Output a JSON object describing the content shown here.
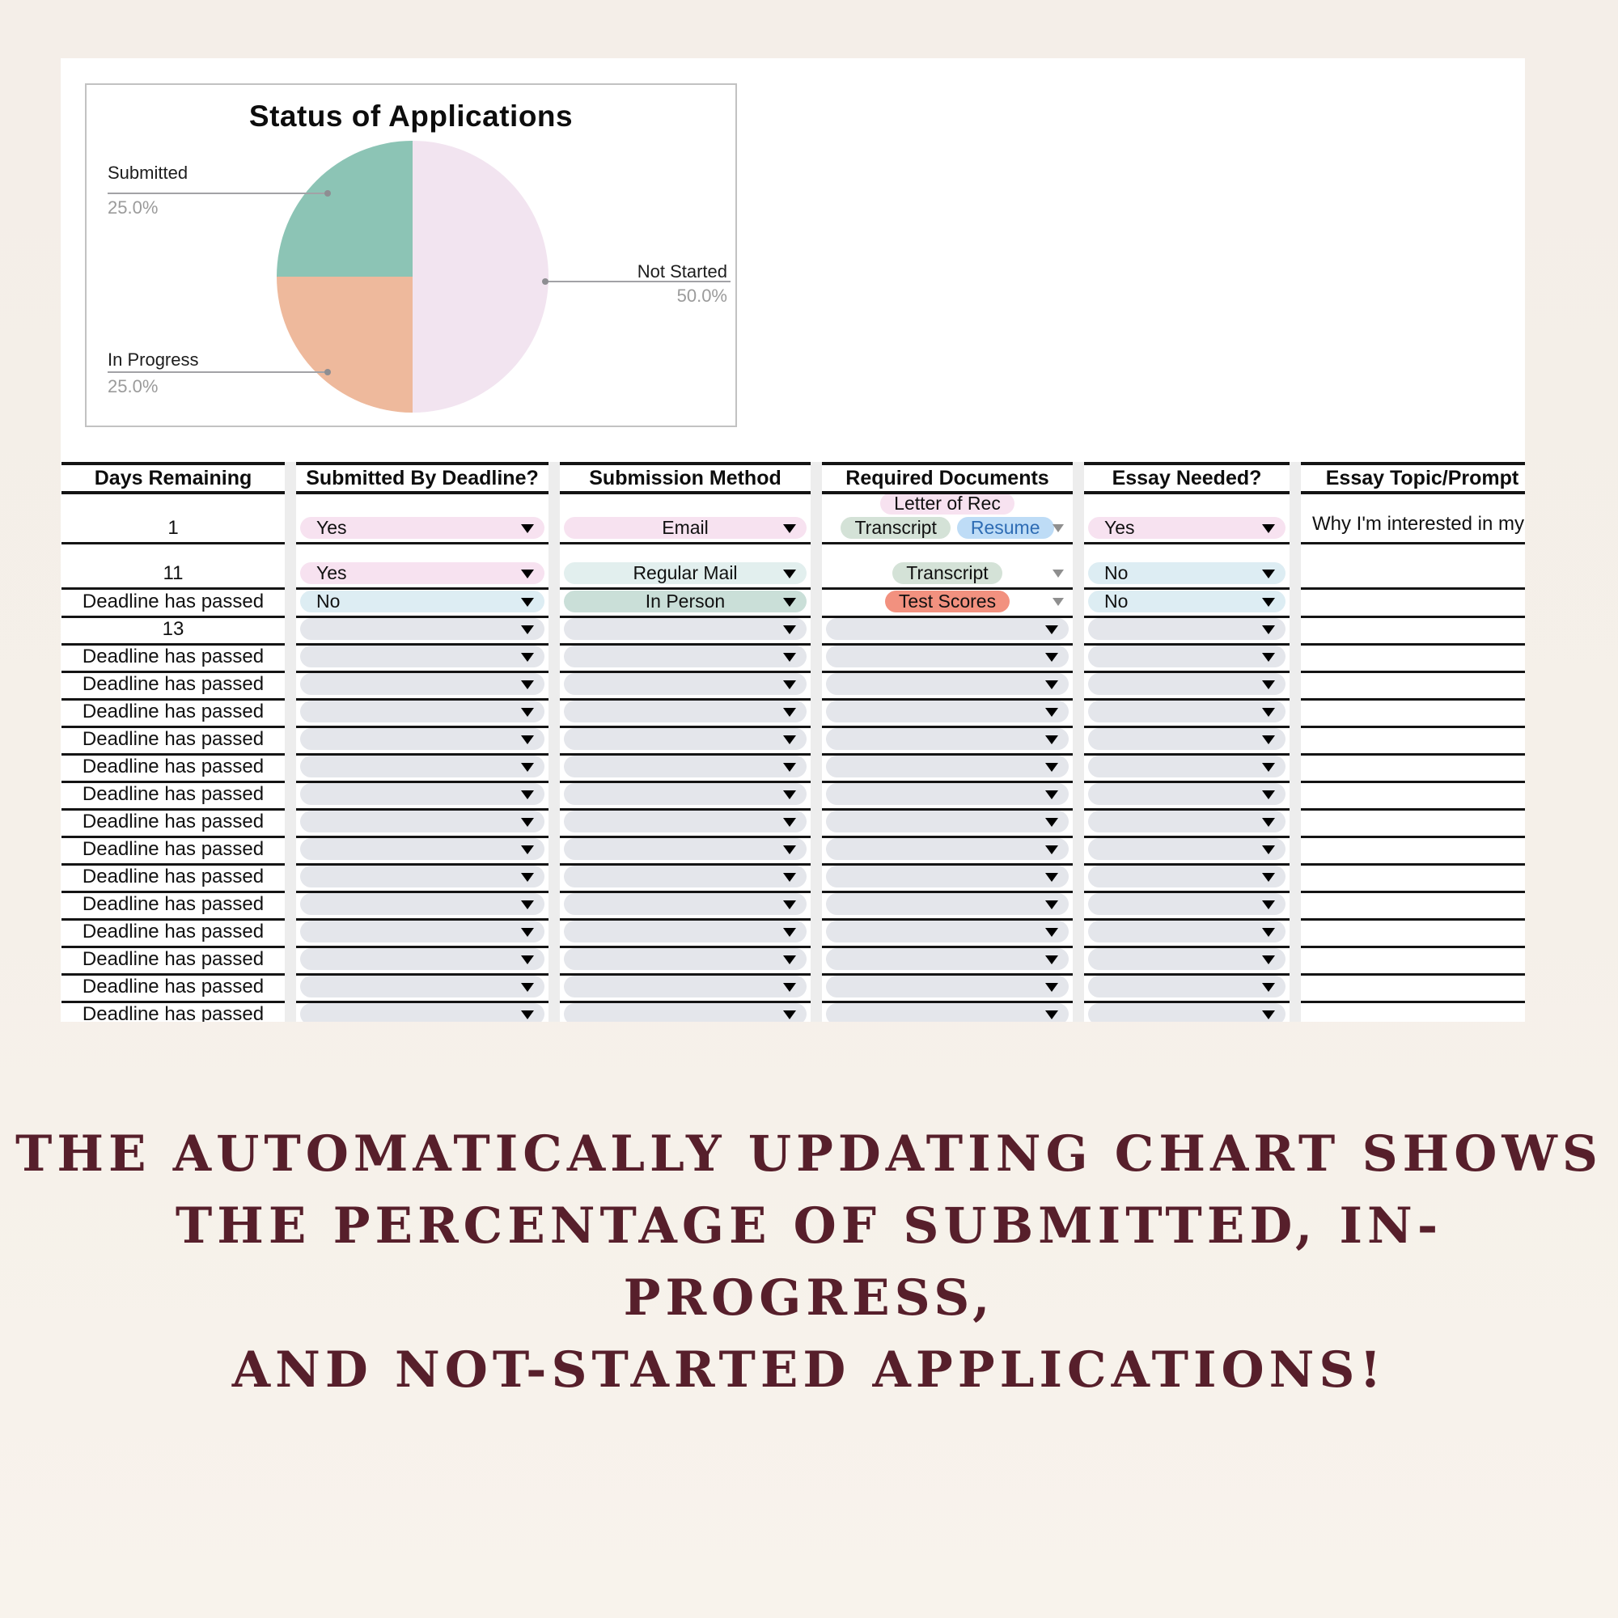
{
  "chart_data": {
    "type": "pie",
    "title": "Status of Applications",
    "legend_position": "outside-callout-labels",
    "grid": false,
    "slices": [
      {
        "label": "Submitted",
        "value": 25.0,
        "pct_label": "25.0%",
        "color": "#8cc4b5"
      },
      {
        "label": "In Progress",
        "value": 25.0,
        "pct_label": "25.0%",
        "color": "#eeb99c"
      },
      {
        "label": "Not Started",
        "value": 50.0,
        "pct_label": "50.0%",
        "color": "#f2e4f0"
      }
    ]
  },
  "table": {
    "headers": [
      "Days Remaining",
      "Submitted By Deadline?",
      "Submission Method",
      "Required Documents",
      "Essay Needed?",
      "Essay Topic/Prompt"
    ],
    "pill_colors": {
      "pink": "#f7e2f0",
      "lightblue": "#ddedf3",
      "cyan": "#e2efee",
      "teal": "#cadfd8",
      "green": "#d4e2d7",
      "blue": "#bedcf6",
      "red": "#f2917f",
      "empty": "#e4e6eb"
    },
    "blue_chip_text": "#2e6cb4",
    "rows": [
      {
        "days": "1",
        "submitted": {
          "text": "Yes",
          "style": "pink"
        },
        "method": {
          "text": "Email",
          "style": "pink"
        },
        "documents": [
          {
            "text": "Letter of Rec",
            "style": "pink"
          },
          {
            "text": "Transcript",
            "style": "green"
          },
          {
            "text": "Resume",
            "style": "blue"
          }
        ],
        "essay": {
          "text": "Yes",
          "style": "pink"
        },
        "topic": "Why I'm interested in my ma"
      },
      {
        "days": "11",
        "submitted": {
          "text": "Yes",
          "style": "pink"
        },
        "method": {
          "text": "Regular Mail",
          "style": "cyan"
        },
        "documents": [
          {
            "text": "Transcript",
            "style": "green"
          }
        ],
        "essay": {
          "text": "No",
          "style": "lightblue"
        },
        "topic": ""
      },
      {
        "days": "Deadline has passed",
        "submitted": {
          "text": "No",
          "style": "lightblue"
        },
        "method": {
          "text": "In Person",
          "style": "teal"
        },
        "documents": [
          {
            "text": "Test Scores",
            "style": "red"
          }
        ],
        "essay": {
          "text": "No",
          "style": "lightblue"
        },
        "topic": ""
      },
      {
        "days": "13",
        "submitted": null,
        "method": null,
        "documents": null,
        "essay": null,
        "topic": ""
      },
      {
        "days": "Deadline has passed",
        "submitted": null,
        "method": null,
        "documents": null,
        "essay": null,
        "topic": ""
      },
      {
        "days": "Deadline has passed",
        "submitted": null,
        "method": null,
        "documents": null,
        "essay": null,
        "topic": ""
      },
      {
        "days": "Deadline has passed",
        "submitted": null,
        "method": null,
        "documents": null,
        "essay": null,
        "topic": ""
      },
      {
        "days": "Deadline has passed",
        "submitted": null,
        "method": null,
        "documents": null,
        "essay": null,
        "topic": ""
      },
      {
        "days": "Deadline has passed",
        "submitted": null,
        "method": null,
        "documents": null,
        "essay": null,
        "topic": ""
      },
      {
        "days": "Deadline has passed",
        "submitted": null,
        "method": null,
        "documents": null,
        "essay": null,
        "topic": ""
      },
      {
        "days": "Deadline has passed",
        "submitted": null,
        "method": null,
        "documents": null,
        "essay": null,
        "topic": ""
      },
      {
        "days": "Deadline has passed",
        "submitted": null,
        "method": null,
        "documents": null,
        "essay": null,
        "topic": ""
      },
      {
        "days": "Deadline has passed",
        "submitted": null,
        "method": null,
        "documents": null,
        "essay": null,
        "topic": ""
      },
      {
        "days": "Deadline has passed",
        "submitted": null,
        "method": null,
        "documents": null,
        "essay": null,
        "topic": ""
      },
      {
        "days": "Deadline has passed",
        "submitted": null,
        "method": null,
        "documents": null,
        "essay": null,
        "topic": ""
      },
      {
        "days": "Deadline has passed",
        "submitted": null,
        "method": null,
        "documents": null,
        "essay": null,
        "topic": ""
      },
      {
        "days": "Deadline has passed",
        "submitted": null,
        "method": null,
        "documents": null,
        "essay": null,
        "topic": ""
      },
      {
        "days": "Deadline has passed",
        "submitted": null,
        "method": null,
        "documents": null,
        "essay": null,
        "topic": ""
      }
    ]
  },
  "caption": {
    "color": "#571f2b",
    "lines": [
      "THE AUTOMATICALLY UPDATING CHART SHOWS",
      "THE PERCENTAGE OF SUBMITTED, IN-PROGRESS,",
      "AND NOT-STARTED APPLICATIONS!"
    ]
  }
}
